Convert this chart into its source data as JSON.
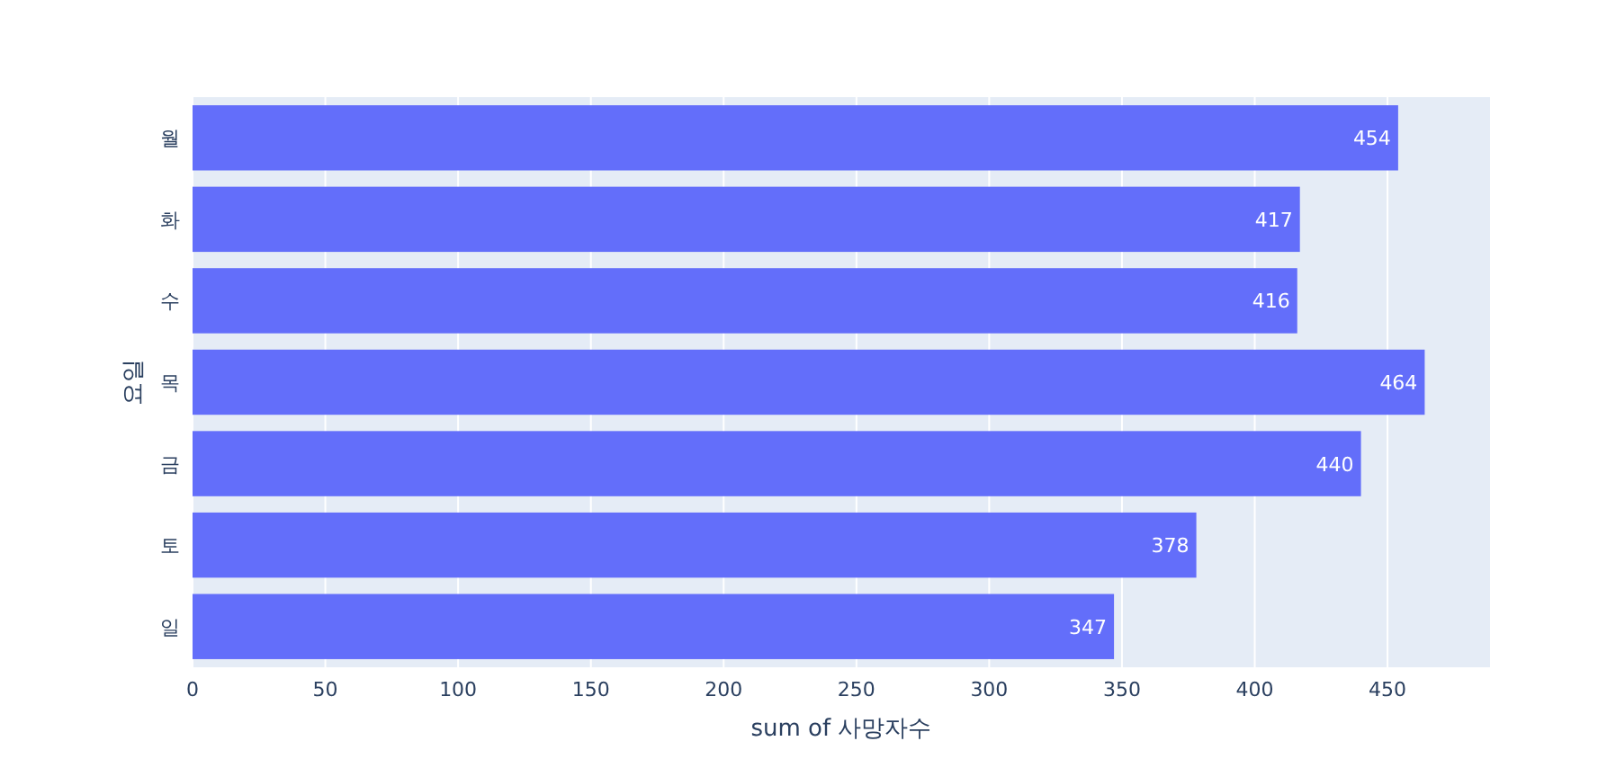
{
  "chart_data": {
    "type": "bar",
    "orientation": "horizontal",
    "categories": [
      "월",
      "화",
      "수",
      "목",
      "금",
      "토",
      "일"
    ],
    "values": [
      454,
      417,
      416,
      464,
      440,
      378,
      347
    ],
    "color": "#636efa",
    "xlabel": "sum of 사망자수",
    "ylabel": "요일",
    "xlim": [
      0,
      488.6
    ],
    "xticks": [
      0,
      50,
      100,
      150,
      200,
      250,
      300,
      350,
      400,
      450
    ],
    "grid": "x",
    "data_labels": true
  }
}
